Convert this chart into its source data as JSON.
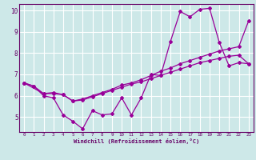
{
  "xlabel": "Windchill (Refroidissement éolien,°C)",
  "xlim": [
    -0.5,
    23.5
  ],
  "ylim": [
    4.3,
    10.3
  ],
  "xticks": [
    0,
    1,
    2,
    3,
    4,
    5,
    6,
    7,
    8,
    9,
    10,
    11,
    12,
    13,
    14,
    15,
    16,
    17,
    18,
    19,
    20,
    21,
    22,
    23
  ],
  "yticks": [
    5,
    6,
    7,
    8,
    9,
    10
  ],
  "bg_color": "#cde8e8",
  "grid_color": "#ffffff",
  "line_color": "#990099",
  "line1_x": [
    0,
    1,
    2,
    3,
    4,
    5,
    6,
    7,
    8,
    9,
    10,
    11,
    12,
    13,
    14,
    15,
    16,
    17,
    18,
    19,
    20,
    21,
    22,
    23
  ],
  "line1_y": [
    6.6,
    6.45,
    6.0,
    5.9,
    5.1,
    4.8,
    4.45,
    5.3,
    5.1,
    5.15,
    5.9,
    5.1,
    5.9,
    7.0,
    6.95,
    8.55,
    9.95,
    9.7,
    10.05,
    10.1,
    8.5,
    7.4,
    7.55,
    7.5
  ],
  "line2_x": [
    0,
    2,
    3,
    4,
    5,
    6,
    7,
    8,
    9,
    10,
    11,
    12,
    13,
    14,
    15,
    16,
    17,
    18,
    19,
    20,
    21,
    22,
    23
  ],
  "line2_y": [
    6.6,
    6.1,
    6.15,
    6.05,
    5.75,
    5.85,
    6.0,
    6.15,
    6.3,
    6.5,
    6.6,
    6.75,
    6.95,
    7.15,
    7.3,
    7.5,
    7.65,
    7.8,
    7.95,
    8.1,
    8.2,
    8.3,
    9.5
  ],
  "line3_x": [
    0,
    1,
    2,
    3,
    4,
    5,
    6,
    7,
    8,
    9,
    10,
    11,
    12,
    13,
    14,
    15,
    16,
    17,
    18,
    19,
    20,
    21,
    22,
    23
  ],
  "line3_y": [
    6.6,
    6.45,
    6.1,
    6.1,
    6.05,
    5.75,
    5.8,
    5.95,
    6.1,
    6.25,
    6.4,
    6.55,
    6.65,
    6.8,
    6.95,
    7.1,
    7.25,
    7.4,
    7.55,
    7.65,
    7.75,
    7.85,
    7.9,
    7.5
  ]
}
